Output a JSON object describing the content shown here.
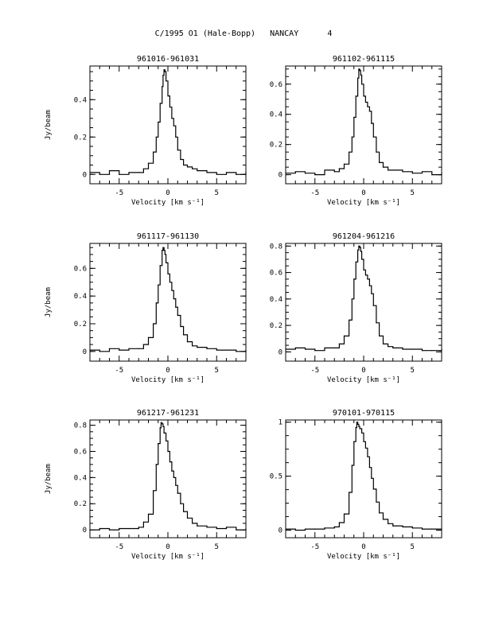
{
  "page": {
    "title": "C/1995 O1 (Hale-Bopp)   NANCAY      4"
  },
  "chart_data": [
    {
      "type": "line",
      "title": "961016-961031",
      "xlabel": "Velocity [km s⁻¹]",
      "ylabel": "Jy/beam",
      "xlim": [
        -8,
        8
      ],
      "ylim": [
        -0.05,
        0.58
      ],
      "xticks": [
        -5,
        0,
        5
      ],
      "yticks": [
        0,
        0.2,
        0.4
      ],
      "ytick_labels": [
        "0",
        "0.2",
        "0.4"
      ],
      "peak": {
        "x": -0.4,
        "y": 0.56
      },
      "x": [
        -8,
        -7,
        -6,
        -5,
        -4,
        -3,
        -2.5,
        -2,
        -1.5,
        -1.2,
        -1,
        -0.8,
        -0.6,
        -0.5,
        -0.4,
        -0.3,
        -0.2,
        0,
        0.2,
        0.4,
        0.6,
        0.8,
        1,
        1.3,
        1.6,
        2,
        2.5,
        3,
        4,
        5,
        6,
        7,
        8
      ],
      "y": [
        0.01,
        0.0,
        0.02,
        0.0,
        0.01,
        0.01,
        0.03,
        0.06,
        0.12,
        0.2,
        0.28,
        0.38,
        0.47,
        0.53,
        0.56,
        0.55,
        0.5,
        0.42,
        0.36,
        0.3,
        0.26,
        0.2,
        0.13,
        0.08,
        0.05,
        0.04,
        0.03,
        0.02,
        0.01,
        0.0,
        0.01,
        0.0,
        0.01
      ]
    },
    {
      "type": "line",
      "title": "961102-961115",
      "xlabel": "Velocity [km s⁻¹]",
      "ylabel": "",
      "xlim": [
        -8,
        8
      ],
      "ylim": [
        -0.06,
        0.72
      ],
      "xticks": [
        -5,
        0,
        5
      ],
      "yticks": [
        0,
        0.2,
        0.4,
        0.6
      ],
      "ytick_labels": [
        "0",
        "0.2",
        "0.4",
        "0.6"
      ],
      "peak": {
        "x": -0.5,
        "y": 0.7
      },
      "x": [
        -8,
        -7,
        -6,
        -5,
        -4,
        -3,
        -2.5,
        -2,
        -1.5,
        -1.2,
        -1,
        -0.8,
        -0.6,
        -0.5,
        -0.4,
        -0.3,
        -0.2,
        0,
        0.2,
        0.4,
        0.6,
        0.8,
        1,
        1.3,
        1.6,
        2,
        2.5,
        3,
        4,
        5,
        6,
        7,
        8
      ],
      "y": [
        0.01,
        0.02,
        0.01,
        0.0,
        0.03,
        0.02,
        0.04,
        0.07,
        0.15,
        0.25,
        0.38,
        0.52,
        0.64,
        0.7,
        0.69,
        0.66,
        0.6,
        0.52,
        0.48,
        0.45,
        0.42,
        0.34,
        0.25,
        0.15,
        0.08,
        0.05,
        0.03,
        0.03,
        0.02,
        0.01,
        0.02,
        0.0,
        0.01
      ]
    },
    {
      "type": "line",
      "title": "961117-961130",
      "xlabel": "Velocity [km s⁻¹]",
      "ylabel": "Jy/beam",
      "xlim": [
        -8,
        8
      ],
      "ylim": [
        -0.07,
        0.78
      ],
      "xticks": [
        -5,
        0,
        5
      ],
      "yticks": [
        0,
        0.2,
        0.4,
        0.6
      ],
      "ytick_labels": [
        "0",
        "0.2",
        "0.4",
        "0.6"
      ],
      "peak": {
        "x": -0.6,
        "y": 0.75
      },
      "x": [
        -8,
        -7,
        -6,
        -5,
        -4,
        -3,
        -2.5,
        -2,
        -1.5,
        -1.2,
        -1,
        -0.8,
        -0.6,
        -0.5,
        -0.4,
        -0.3,
        -0.2,
        0,
        0.2,
        0.4,
        0.6,
        0.8,
        1,
        1.3,
        1.6,
        2,
        2.5,
        3,
        4,
        5,
        6,
        7,
        8
      ],
      "y": [
        0.01,
        0.0,
        0.02,
        0.01,
        0.02,
        0.02,
        0.05,
        0.1,
        0.2,
        0.35,
        0.48,
        0.62,
        0.73,
        0.75,
        0.73,
        0.7,
        0.64,
        0.56,
        0.5,
        0.44,
        0.38,
        0.32,
        0.26,
        0.18,
        0.12,
        0.07,
        0.04,
        0.03,
        0.02,
        0.01,
        0.01,
        0.0,
        0.01
      ]
    },
    {
      "type": "line",
      "title": "961204-961216",
      "xlabel": "Velocity [km s⁻¹]",
      "ylabel": "",
      "xlim": [
        -8,
        8
      ],
      "ylim": [
        -0.07,
        0.82
      ],
      "xticks": [
        -5,
        0,
        5
      ],
      "yticks": [
        0,
        0.2,
        0.4,
        0.6,
        0.8
      ],
      "ytick_labels": [
        "0",
        "0.2",
        "0.4",
        "0.6",
        "0.8"
      ],
      "peak": {
        "x": -0.5,
        "y": 0.8
      },
      "x": [
        -8,
        -7,
        -6,
        -5,
        -4,
        -3,
        -2.5,
        -2,
        -1.5,
        -1.2,
        -1,
        -0.8,
        -0.6,
        -0.5,
        -0.4,
        -0.3,
        -0.2,
        0,
        0.2,
        0.4,
        0.6,
        0.8,
        1,
        1.3,
        1.6,
        2,
        2.5,
        3,
        4,
        5,
        6,
        7,
        8
      ],
      "y": [
        0.02,
        0.03,
        0.02,
        0.01,
        0.03,
        0.03,
        0.06,
        0.12,
        0.24,
        0.4,
        0.55,
        0.68,
        0.77,
        0.8,
        0.79,
        0.76,
        0.7,
        0.62,
        0.58,
        0.55,
        0.5,
        0.44,
        0.35,
        0.22,
        0.12,
        0.06,
        0.04,
        0.03,
        0.02,
        0.02,
        0.01,
        0.01,
        0.02
      ]
    },
    {
      "type": "line",
      "title": "961217-961231",
      "xlabel": "Velocity [km s⁻¹]",
      "ylabel": "Jy/beam",
      "xlim": [
        -8,
        8
      ],
      "ylim": [
        -0.06,
        0.84
      ],
      "xticks": [
        -5,
        0,
        5
      ],
      "yticks": [
        0,
        0.2,
        0.4,
        0.6,
        0.8
      ],
      "ytick_labels": [
        "0",
        "0.2",
        "0.4",
        "0.6",
        "0.8"
      ],
      "peak": {
        "x": -0.7,
        "y": 0.82
      },
      "x": [
        -8,
        -7,
        -6,
        -5,
        -4,
        -3,
        -2.5,
        -2,
        -1.5,
        -1.2,
        -1,
        -0.8,
        -0.7,
        -0.6,
        -0.5,
        -0.4,
        -0.2,
        0,
        0.2,
        0.4,
        0.6,
        0.8,
        1,
        1.3,
        1.6,
        2,
        2.5,
        3,
        4,
        5,
        6,
        7,
        8
      ],
      "y": [
        0.0,
        0.01,
        0.0,
        0.01,
        0.01,
        0.02,
        0.06,
        0.12,
        0.3,
        0.5,
        0.66,
        0.78,
        0.82,
        0.81,
        0.79,
        0.74,
        0.68,
        0.6,
        0.52,
        0.45,
        0.4,
        0.34,
        0.28,
        0.2,
        0.14,
        0.09,
        0.05,
        0.03,
        0.02,
        0.01,
        0.02,
        0.0,
        0.01
      ]
    },
    {
      "type": "line",
      "title": "970101-970115",
      "xlabel": "Velocity [km s⁻¹]",
      "ylabel": "",
      "xlim": [
        -8,
        8
      ],
      "ylim": [
        -0.07,
        1.02
      ],
      "xticks": [
        -5,
        0,
        5
      ],
      "yticks": [
        0,
        0.5,
        1
      ],
      "ytick_labels": [
        "0",
        "0.5",
        "1"
      ],
      "peak": {
        "x": -0.7,
        "y": 1.0
      },
      "x": [
        -8,
        -7,
        -6,
        -5,
        -4,
        -3,
        -2.5,
        -2,
        -1.5,
        -1.2,
        -1,
        -0.8,
        -0.7,
        -0.6,
        -0.5,
        -0.4,
        -0.2,
        0,
        0.2,
        0.4,
        0.6,
        0.8,
        1,
        1.3,
        1.6,
        2,
        2.5,
        3,
        4,
        5,
        6,
        7,
        8
      ],
      "y": [
        0.01,
        0.0,
        0.01,
        0.01,
        0.02,
        0.03,
        0.07,
        0.15,
        0.35,
        0.6,
        0.82,
        0.95,
        1.0,
        0.98,
        0.96,
        0.94,
        0.9,
        0.82,
        0.76,
        0.68,
        0.58,
        0.48,
        0.38,
        0.26,
        0.16,
        0.1,
        0.06,
        0.04,
        0.03,
        0.02,
        0.01,
        0.01,
        0.0
      ]
    }
  ]
}
